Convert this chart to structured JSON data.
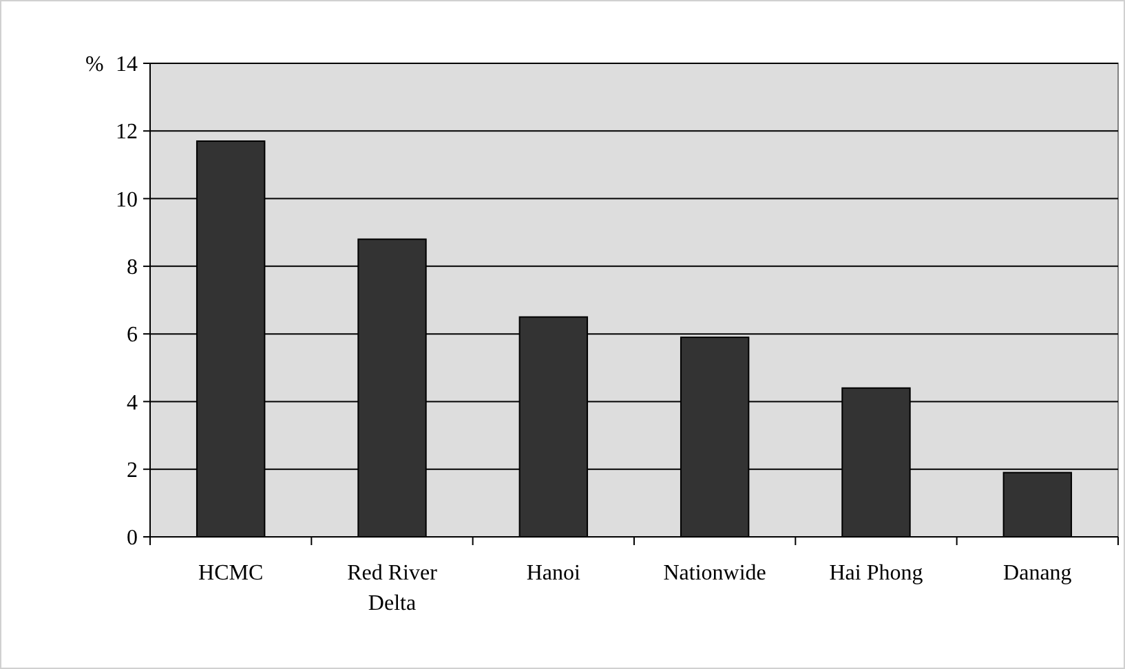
{
  "chart_data": {
    "type": "bar",
    "ylabel": "%",
    "categories": [
      "HCMC",
      "Red River Delta",
      "Hanoi",
      "Nationwide",
      "Hai Phong",
      "Danang"
    ],
    "values": [
      11.7,
      8.8,
      6.5,
      5.9,
      4.4,
      1.9
    ],
    "color": "#333333",
    "ylim": [
      0,
      14
    ],
    "yticks": [
      0,
      2,
      4,
      6,
      8,
      10,
      12,
      14
    ],
    "grid": "y"
  }
}
